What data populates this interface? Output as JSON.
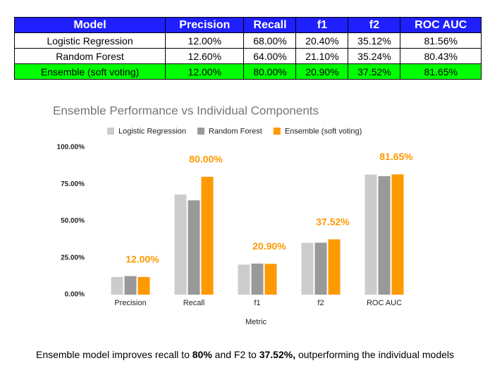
{
  "table": {
    "header": [
      "Model",
      "Precision",
      "Recall",
      "f1",
      "f2",
      "ROC AUC"
    ],
    "rows": [
      [
        "Logistic Regression",
        "12.00%",
        "68.00%",
        "20.40%",
        "35.12%",
        "81.56%"
      ],
      [
        "Random Forest",
        "12.60%",
        "64.00%",
        "21.10%",
        "35.24%",
        "80.43%"
      ],
      [
        "Ensemble (soft voting)",
        "12.00%",
        "80.00%",
        "20.90%",
        "37.52%",
        "81.65%"
      ]
    ]
  },
  "chart_data": {
    "type": "bar",
    "title": "Ensemble Performance vs Individual Components",
    "x_label": "Metric",
    "categories": [
      "Precision",
      "Recall",
      "f1",
      "f2",
      "ROC AUC"
    ],
    "series": [
      {
        "name": "Logistic Regression",
        "color": "#cccccc",
        "values": [
          12,
          68,
          20.4,
          35.12,
          81.56
        ]
      },
      {
        "name": "Random Forest",
        "color": "#999999",
        "values": [
          12.6,
          64,
          21.1,
          35.24,
          80.43
        ]
      },
      {
        "name": "Ensemble (soft voting)",
        "color": "#ff9900",
        "values": [
          12,
          80,
          20.9,
          37.52,
          81.65
        ],
        "value_labels": [
          "12.00%",
          "80.00%",
          "20.90%",
          "37.52%",
          "81.65%"
        ]
      }
    ],
    "ylim": [
      0,
      100
    ],
    "yticks": [
      {
        "value": 0,
        "label": "0.00%"
      },
      {
        "value": 25,
        "label": "25.00%"
      },
      {
        "value": 50,
        "label": "50.00%"
      },
      {
        "value": 75,
        "label": "75.00%"
      },
      {
        "value": 100,
        "label": "100.00%"
      }
    ],
    "grid": false
  },
  "caption": [
    "Ensemble model improves recall to ",
    "80%",
    " and F2 to ",
    "37.52%,",
    " outperforming the individual models"
  ]
}
